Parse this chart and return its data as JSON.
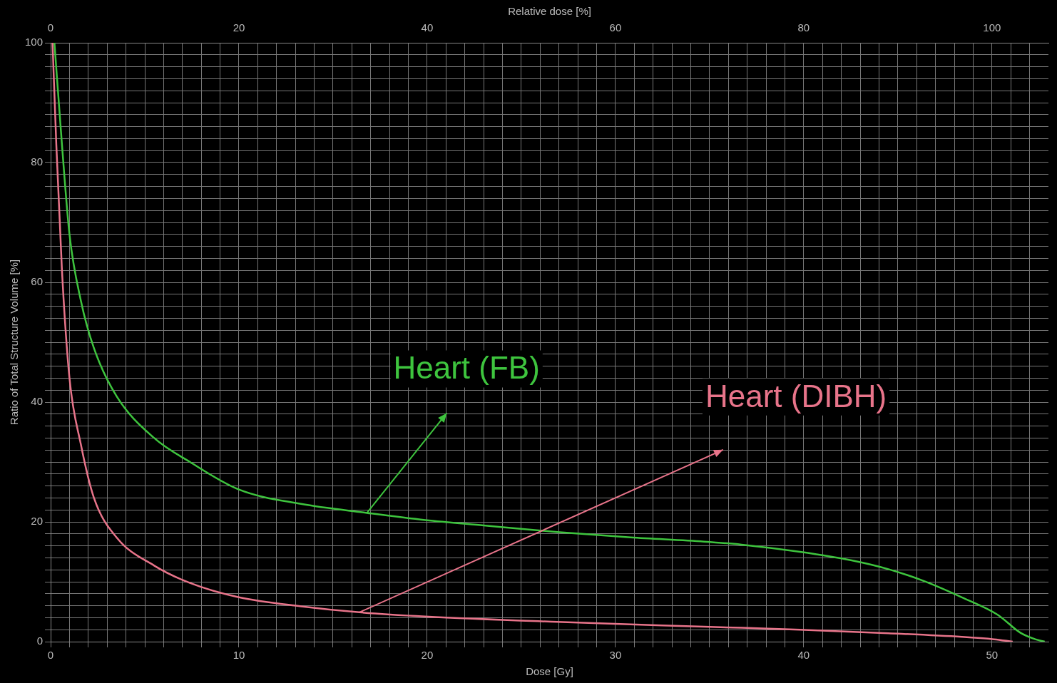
{
  "chart_data": {
    "type": "line",
    "xlabel": "Dose [Gy]",
    "x2label": "Relative dose [%]",
    "ylabel": "Ratio of Total Structure Volume [%]",
    "xlim": [
      0,
      53
    ],
    "ylim": [
      0,
      100
    ],
    "x2lim": [
      0,
      106
    ],
    "xticks": [
      0,
      {
        "value": 1,
        "label": null
      },
      {
        "value": 2,
        "label": null
      },
      {
        "value": 3,
        "label": null
      },
      {
        "value": 4,
        "label": null
      },
      {
        "value": 5,
        "label": null
      },
      {
        "value": 6,
        "label": null
      },
      {
        "value": 7,
        "label": null
      },
      {
        "value": 8,
        "label": null
      },
      {
        "value": 9,
        "label": null
      },
      10,
      {
        "value": 11,
        "label": null
      },
      {
        "value": 12,
        "label": null
      },
      {
        "value": 13,
        "label": null
      },
      {
        "value": 14,
        "label": null
      },
      {
        "value": 15,
        "label": null
      },
      {
        "value": 16,
        "label": null
      },
      {
        "value": 17,
        "label": null
      },
      {
        "value": 18,
        "label": null
      },
      {
        "value": 19,
        "label": null
      },
      20,
      {
        "value": 21,
        "label": null
      },
      {
        "value": 22,
        "label": null
      },
      {
        "value": 23,
        "label": null
      },
      {
        "value": 24,
        "label": null
      },
      {
        "value": 25,
        "label": null
      },
      {
        "value": 26,
        "label": null
      },
      {
        "value": 27,
        "label": null
      },
      {
        "value": 28,
        "label": null
      },
      {
        "value": 29,
        "label": null
      },
      30,
      {
        "value": 31,
        "label": null
      },
      {
        "value": 32,
        "label": null
      },
      {
        "value": 33,
        "label": null
      },
      {
        "value": 34,
        "label": null
      },
      {
        "value": 35,
        "label": null
      },
      {
        "value": 36,
        "label": null
      },
      {
        "value": 37,
        "label": null
      },
      {
        "value": 38,
        "label": null
      },
      {
        "value": 39,
        "label": null
      },
      40,
      {
        "value": 41,
        "label": null
      },
      {
        "value": 42,
        "label": null
      },
      {
        "value": 43,
        "label": null
      },
      {
        "value": 44,
        "label": null
      },
      {
        "value": 45,
        "label": null
      },
      {
        "value": 46,
        "label": null
      },
      {
        "value": 47,
        "label": null
      },
      {
        "value": 48,
        "label": null
      },
      {
        "value": 49,
        "label": null
      },
      50,
      {
        "value": 51,
        "label": null
      },
      {
        "value": 52,
        "label": null
      }
    ],
    "x2ticks": [
      0,
      20,
      40,
      60,
      80,
      100
    ],
    "yticks": [
      0,
      {
        "value": 2,
        "label": null
      },
      {
        "value": 4,
        "label": null
      },
      {
        "value": 6,
        "label": null
      },
      {
        "value": 8,
        "label": null
      },
      {
        "value": 10,
        "label": null
      },
      {
        "value": 12,
        "label": null
      },
      {
        "value": 14,
        "label": null
      },
      {
        "value": 16,
        "label": null
      },
      {
        "value": 18,
        "label": null
      },
      20,
      {
        "value": 22,
        "label": null
      },
      {
        "value": 24,
        "label": null
      },
      {
        "value": 26,
        "label": null
      },
      {
        "value": 28,
        "label": null
      },
      {
        "value": 30,
        "label": null
      },
      {
        "value": 32,
        "label": null
      },
      {
        "value": 34,
        "label": null
      },
      {
        "value": 36,
        "label": null
      },
      {
        "value": 38,
        "label": null
      },
      40,
      {
        "value": 42,
        "label": null
      },
      {
        "value": 44,
        "label": null
      },
      {
        "value": 46,
        "label": null
      },
      {
        "value": 48,
        "label": null
      },
      {
        "value": 50,
        "label": null
      },
      {
        "value": 52,
        "label": null
      },
      {
        "value": 54,
        "label": null
      },
      {
        "value": 56,
        "label": null
      },
      {
        "value": 58,
        "label": null
      },
      60,
      {
        "value": 62,
        "label": null
      },
      {
        "value": 64,
        "label": null
      },
      {
        "value": 66,
        "label": null
      },
      {
        "value": 68,
        "label": null
      },
      {
        "value": 70,
        "label": null
      },
      {
        "value": 72,
        "label": null
      },
      {
        "value": 74,
        "label": null
      },
      {
        "value": 76,
        "label": null
      },
      {
        "value": 78,
        "label": null
      },
      80,
      {
        "value": 82,
        "label": null
      },
      {
        "value": 84,
        "label": null
      },
      {
        "value": 86,
        "label": null
      },
      {
        "value": 88,
        "label": null
      },
      {
        "value": 90,
        "label": null
      },
      {
        "value": 92,
        "label": null
      },
      {
        "value": 94,
        "label": null
      },
      {
        "value": 96,
        "label": null
      },
      {
        "value": 98,
        "label": null
      },
      100
    ],
    "grid": true,
    "legend": false,
    "marker": "none",
    "line_style": "solid",
    "series": [
      {
        "name": "Heart (FB)",
        "color": "#3ec43e",
        "x": [
          0.2,
          0.6,
          1,
          1.6,
          2.3,
          3.5,
          5.5,
          7.4,
          10,
          13.3,
          16.8,
          19.9,
          23,
          26.9,
          30.8,
          34.7,
          36.7,
          39.8,
          42.5,
          44.5,
          46.4,
          48.4,
          50.3,
          51.5,
          52.3,
          52.8
        ],
        "values": [
          100,
          83,
          68,
          57,
          49,
          41,
          34,
          30,
          25.4,
          23,
          21.5,
          20.3,
          19.4,
          18.3,
          17.4,
          16.7,
          16.2,
          15,
          13.6,
          12.1,
          10.1,
          7.4,
          4.5,
          1.5,
          0.4,
          0
        ]
      },
      {
        "name": "Heart (DIBH)",
        "color": "#e8748a",
        "x": [
          0.1,
          0.3,
          0.6,
          1,
          1.6,
          2.3,
          3.5,
          5.5,
          7.4,
          10,
          13.3,
          16.4,
          19.9,
          26.9,
          34.7,
          39.8,
          44.5,
          48.4,
          50.1,
          51.1
        ],
        "values": [
          100,
          83,
          62,
          44,
          33,
          24,
          17.4,
          12.7,
          9.8,
          7.4,
          5.9,
          4.9,
          4.2,
          3.3,
          2.5,
          2,
          1.4,
          0.8,
          0.4,
          0
        ]
      }
    ]
  }
}
